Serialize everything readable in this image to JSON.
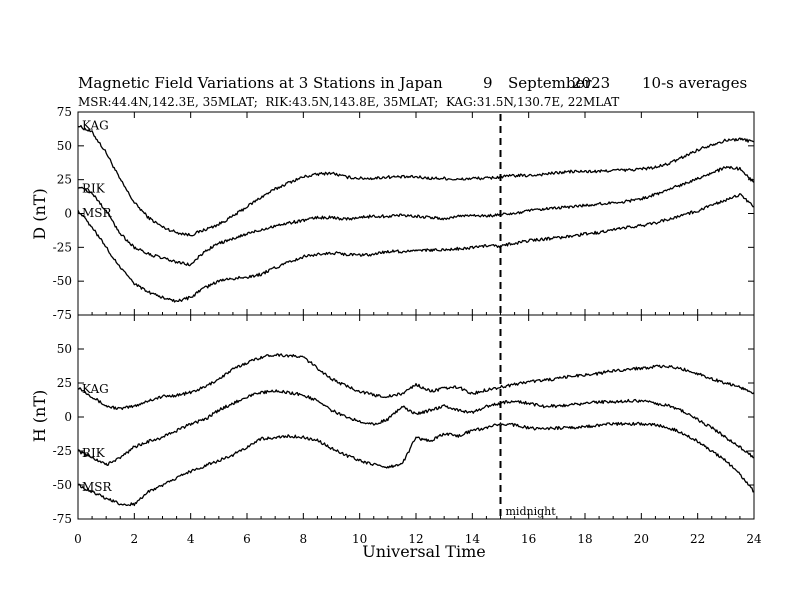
{
  "chart_data": [
    {
      "type": "line",
      "title": "Magnetic Field Variations at 3 Stations in Japan",
      "date_day": "9",
      "date_month": "September",
      "date_year": "2023",
      "averaging": "10-s averages",
      "subtitle": "MSR:44.4N,142.3E, 35MLAT;  RIK:43.5N,143.8E, 35MLAT;  KAG:31.5N,130.7E, 22MLAT",
      "xlabel": "",
      "ylabel": "D (nT)",
      "xlim": [
        0,
        24
      ],
      "ylim": [
        -75,
        75
      ],
      "x_ticks": [
        0,
        2,
        4,
        6,
        8,
        10,
        12,
        14,
        16,
        18,
        20,
        22,
        24
      ],
      "y_ticks": [
        -75,
        -50,
        -25,
        0,
        25,
        50,
        75
      ],
      "grid": false,
      "series": [
        {
          "name": "KAG",
          "x": [
            0,
            0.5,
            1,
            1.5,
            2,
            2.5,
            3,
            3.5,
            4,
            4.5,
            5,
            5.5,
            6,
            6.5,
            7,
            7.5,
            8,
            8.5,
            9,
            9.5,
            10,
            10.5,
            11,
            11.5,
            12,
            12.5,
            13,
            13.5,
            14,
            14.5,
            15,
            15.5,
            16,
            16.5,
            17,
            17.5,
            18,
            18.5,
            19,
            19.5,
            20,
            20.5,
            21,
            21.5,
            22,
            22.5,
            23,
            23.5,
            24
          ],
          "values": [
            65,
            60,
            45,
            25,
            8,
            -3,
            -10,
            -14,
            -16,
            -12,
            -8,
            -2,
            5,
            12,
            18,
            23,
            27,
            29,
            30,
            27,
            26,
            26,
            27,
            27,
            27,
            26,
            26,
            25,
            26,
            26,
            27,
            28,
            28,
            29,
            30,
            31,
            31,
            31,
            32,
            32,
            33,
            34,
            37,
            42,
            47,
            51,
            54,
            55,
            53
          ]
        },
        {
          "name": "RIK",
          "x": [
            0,
            0.5,
            1,
            1.5,
            2,
            2.5,
            3,
            3.5,
            4,
            4.5,
            5,
            5.5,
            6,
            6.5,
            7,
            7.5,
            8,
            8.5,
            9,
            9.5,
            10,
            10.5,
            11,
            11.5,
            12,
            12.5,
            13,
            13.5,
            14,
            14.5,
            15,
            15.5,
            16,
            16.5,
            17,
            17.5,
            18,
            18.5,
            19,
            19.5,
            20,
            20.5,
            21,
            21.5,
            22,
            22.5,
            23,
            23.5,
            24
          ],
          "values": [
            20,
            15,
            2,
            -15,
            -25,
            -30,
            -33,
            -36,
            -38,
            -28,
            -22,
            -19,
            -15,
            -12,
            -9,
            -7,
            -5,
            -3,
            -3,
            -4,
            -3,
            -2,
            -2,
            -1,
            -2,
            -3,
            -4,
            -2,
            -1,
            -2,
            -1,
            0,
            2,
            3,
            4,
            5,
            6,
            7,
            8,
            9,
            11,
            14,
            18,
            22,
            26,
            30,
            34,
            33,
            23
          ]
        },
        {
          "name": "MSR",
          "x": [
            0,
            0.5,
            1,
            1.5,
            2,
            2.5,
            3,
            3.5,
            4,
            4.5,
            5,
            5.5,
            6,
            6.5,
            7,
            7.5,
            8,
            8.5,
            9,
            9.5,
            10,
            10.5,
            11,
            11.5,
            12,
            12.5,
            13,
            13.5,
            14,
            14.5,
            15,
            15.5,
            16,
            16.5,
            17,
            17.5,
            18,
            18.5,
            19,
            19.5,
            20,
            20.5,
            21,
            21.5,
            22,
            22.5,
            23,
            23.5,
            24
          ],
          "values": [
            2,
            -10,
            -25,
            -40,
            -52,
            -58,
            -62,
            -65,
            -62,
            -55,
            -50,
            -48,
            -47,
            -45,
            -40,
            -36,
            -32,
            -30,
            -29,
            -30,
            -31,
            -30,
            -28,
            -28,
            -28,
            -27,
            -27,
            -26,
            -25,
            -24,
            -24,
            -22,
            -20,
            -19,
            -18,
            -17,
            -15,
            -14,
            -12,
            -10,
            -9,
            -7,
            -4,
            -1,
            2,
            6,
            10,
            14,
            5
          ]
        }
      ],
      "annotations": [
        {
          "text": "",
          "x": 15
        }
      ]
    },
    {
      "type": "line",
      "title": "",
      "xlabel": "Universal Time",
      "ylabel": "H (nT)",
      "xlim": [
        0,
        24
      ],
      "ylim": [
        -75,
        75
      ],
      "x_ticks": [
        0,
        2,
        4,
        6,
        8,
        10,
        12,
        14,
        16,
        18,
        20,
        22,
        24
      ],
      "y_ticks": [
        -75,
        -50,
        -25,
        0,
        25,
        50
      ],
      "grid": false,
      "series": [
        {
          "name": "KAG",
          "x": [
            0,
            0.5,
            1,
            1.5,
            2,
            2.5,
            3,
            3.5,
            4,
            4.5,
            5,
            5.5,
            6,
            6.5,
            7,
            7.5,
            8,
            8.5,
            9,
            9.5,
            10,
            10.5,
            11,
            11.5,
            12,
            12.5,
            13,
            13.5,
            14,
            14.5,
            15,
            15.5,
            16,
            16.5,
            17,
            17.5,
            18,
            18.5,
            19,
            19.5,
            20,
            20.5,
            21,
            21.5,
            22,
            22.5,
            23,
            23.5,
            24
          ],
          "values": [
            22,
            15,
            8,
            6,
            8,
            12,
            15,
            16,
            18,
            22,
            28,
            35,
            40,
            44,
            46,
            45,
            44,
            36,
            28,
            23,
            19,
            16,
            15,
            17,
            24,
            19,
            21,
            22,
            17,
            20,
            22,
            24,
            26,
            27,
            28,
            30,
            31,
            32,
            34,
            35,
            36,
            37,
            37,
            35,
            32,
            28,
            25,
            22,
            18
          ]
        },
        {
          "name": "RIK",
          "x": [
            0,
            0.5,
            1,
            1.5,
            2,
            2.5,
            3,
            3.5,
            4,
            4.5,
            5,
            5.5,
            6,
            6.5,
            7,
            7.5,
            8,
            8.5,
            9,
            9.5,
            10,
            10.5,
            11,
            11.5,
            12,
            12.5,
            13,
            13.5,
            14,
            14.5,
            15,
            15.5,
            16,
            16.5,
            17,
            17.5,
            18,
            18.5,
            19,
            19.5,
            20,
            20.5,
            21,
            21.5,
            22,
            22.5,
            23,
            23.5,
            24
          ],
          "values": [
            -25,
            -30,
            -35,
            -30,
            -22,
            -18,
            -15,
            -10,
            -5,
            -2,
            5,
            10,
            15,
            18,
            19,
            18,
            16,
            12,
            5,
            0,
            -3,
            -5,
            -2,
            8,
            2,
            5,
            8,
            5,
            3,
            8,
            10,
            12,
            10,
            8,
            8,
            9,
            10,
            11,
            11,
            12,
            12,
            10,
            8,
            4,
            -2,
            -8,
            -15,
            -22,
            -30
          ]
        },
        {
          "name": "MSR",
          "x": [
            0,
            0.5,
            1,
            1.5,
            2,
            2.5,
            3,
            3.5,
            4,
            4.5,
            5,
            5.5,
            6,
            6.5,
            7,
            7.5,
            8,
            8.5,
            9,
            9.5,
            10,
            10.5,
            11,
            11.5,
            12,
            12.5,
            13,
            13.5,
            14,
            14.5,
            15,
            15.5,
            16,
            16.5,
            17,
            17.5,
            18,
            18.5,
            19,
            19.5,
            20,
            20.5,
            21,
            21.5,
            22,
            22.5,
            23,
            23.5,
            24
          ],
          "values": [
            -50,
            -55,
            -60,
            -64,
            -64,
            -55,
            -50,
            -45,
            -40,
            -36,
            -32,
            -28,
            -22,
            -16,
            -15,
            -14,
            -15,
            -17,
            -23,
            -28,
            -32,
            -35,
            -37,
            -35,
            -15,
            -18,
            -12,
            -14,
            -10,
            -8,
            -5,
            -6,
            -8,
            -9,
            -8,
            -8,
            -7,
            -6,
            -5,
            -5,
            -5,
            -6,
            -8,
            -12,
            -18,
            -25,
            -32,
            -42,
            -55
          ]
        }
      ],
      "annotations": [
        {
          "text": "midnight",
          "x": 15
        }
      ]
    }
  ]
}
